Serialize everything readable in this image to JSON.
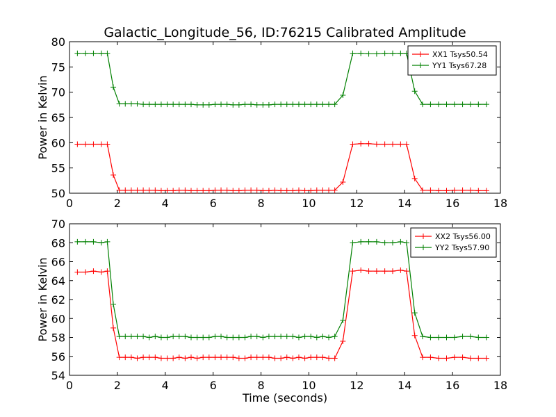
{
  "title": "Galactic_Longitude_56, ID:76215 Calibrated Amplitude",
  "colors": {
    "red": "#ff0000",
    "green": "#008000"
  },
  "chart_data": [
    {
      "type": "line",
      "xlabel": "",
      "ylabel": "Power in Kelvin",
      "xlim": [
        0,
        18
      ],
      "ylim": [
        50,
        80
      ],
      "xticks": [
        0,
        2,
        4,
        6,
        8,
        10,
        12,
        14,
        16,
        18
      ],
      "yticks": [
        50,
        55,
        60,
        65,
        70,
        75,
        80
      ],
      "grid": false,
      "legend_position": "top-right",
      "x": [
        0.33,
        0.67,
        1.0,
        1.33,
        1.58,
        1.83,
        2.08,
        2.33,
        2.58,
        2.83,
        3.08,
        3.33,
        3.58,
        3.83,
        4.08,
        4.33,
        4.58,
        4.83,
        5.08,
        5.33,
        5.58,
        5.83,
        6.08,
        6.33,
        6.58,
        6.83,
        7.08,
        7.33,
        7.58,
        7.83,
        8.08,
        8.33,
        8.58,
        8.83,
        9.08,
        9.33,
        9.58,
        9.83,
        10.08,
        10.33,
        10.58,
        10.83,
        11.08,
        11.42,
        11.83,
        12.17,
        12.5,
        12.83,
        13.17,
        13.5,
        13.83,
        14.08,
        14.42,
        14.75,
        15.08,
        15.42,
        15.75,
        16.08,
        16.42,
        16.75,
        17.08,
        17.42
      ],
      "series": [
        {
          "name": "XX1 Tsys50.54",
          "color": "#ff0000",
          "values": [
            59.7,
            59.7,
            59.7,
            59.7,
            59.7,
            53.6,
            50.6,
            50.6,
            50.6,
            50.6,
            50.6,
            50.6,
            50.6,
            50.5,
            50.5,
            50.5,
            50.6,
            50.6,
            50.5,
            50.5,
            50.5,
            50.5,
            50.6,
            50.6,
            50.6,
            50.5,
            50.5,
            50.6,
            50.6,
            50.6,
            50.5,
            50.5,
            50.6,
            50.5,
            50.5,
            50.5,
            50.6,
            50.5,
            50.5,
            50.6,
            50.6,
            50.6,
            50.6,
            52.2,
            59.7,
            59.8,
            59.8,
            59.7,
            59.7,
            59.7,
            59.7,
            59.7,
            52.9,
            50.6,
            50.6,
            50.5,
            50.5,
            50.6,
            50.6,
            50.6,
            50.5,
            50.5
          ]
        },
        {
          "name": "YY1 Tsys67.28",
          "color": "#008000",
          "values": [
            77.7,
            77.7,
            77.7,
            77.7,
            77.7,
            71.0,
            67.7,
            67.7,
            67.7,
            67.7,
            67.6,
            67.6,
            67.6,
            67.6,
            67.6,
            67.6,
            67.6,
            67.6,
            67.6,
            67.5,
            67.5,
            67.5,
            67.6,
            67.6,
            67.6,
            67.5,
            67.5,
            67.6,
            67.6,
            67.5,
            67.5,
            67.5,
            67.6,
            67.6,
            67.6,
            67.6,
            67.6,
            67.6,
            67.6,
            67.6,
            67.6,
            67.6,
            67.6,
            69.4,
            77.7,
            77.7,
            77.6,
            77.6,
            77.7,
            77.7,
            77.7,
            77.7,
            70.2,
            67.6,
            67.6,
            67.6,
            67.6,
            67.6,
            67.6,
            67.6,
            67.6,
            67.6
          ]
        }
      ]
    },
    {
      "type": "line",
      "xlabel": "Time (seconds)",
      "ylabel": "Power in Kelvin",
      "xlim": [
        0,
        18
      ],
      "ylim": [
        54,
        70
      ],
      "xticks": [
        0,
        2,
        4,
        6,
        8,
        10,
        12,
        14,
        16,
        18
      ],
      "yticks": [
        54,
        56,
        58,
        60,
        62,
        64,
        66,
        68,
        70
      ],
      "grid": false,
      "legend_position": "top-right",
      "x": [
        0.33,
        0.67,
        1.0,
        1.33,
        1.58,
        1.83,
        2.08,
        2.33,
        2.58,
        2.83,
        3.08,
        3.33,
        3.58,
        3.83,
        4.08,
        4.33,
        4.58,
        4.83,
        5.08,
        5.33,
        5.58,
        5.83,
        6.08,
        6.33,
        6.58,
        6.83,
        7.08,
        7.33,
        7.58,
        7.83,
        8.08,
        8.33,
        8.58,
        8.83,
        9.08,
        9.33,
        9.58,
        9.83,
        10.08,
        10.33,
        10.58,
        10.83,
        11.08,
        11.42,
        11.83,
        12.17,
        12.5,
        12.83,
        13.17,
        13.5,
        13.83,
        14.08,
        14.42,
        14.75,
        15.08,
        15.42,
        15.75,
        16.08,
        16.42,
        16.75,
        17.08,
        17.42
      ],
      "series": [
        {
          "name": "XX2 Tsys56.00",
          "color": "#ff0000",
          "values": [
            64.9,
            64.9,
            65.0,
            64.9,
            65.0,
            59.0,
            55.9,
            55.9,
            55.9,
            55.8,
            55.9,
            55.9,
            55.9,
            55.8,
            55.8,
            55.8,
            55.9,
            55.8,
            55.9,
            55.8,
            55.9,
            55.9,
            55.9,
            55.9,
            55.9,
            55.9,
            55.8,
            55.8,
            55.9,
            55.9,
            55.9,
            55.9,
            55.8,
            55.8,
            55.9,
            55.8,
            55.9,
            55.8,
            55.9,
            55.9,
            55.9,
            55.8,
            55.8,
            57.6,
            65.0,
            65.1,
            65.0,
            65.0,
            65.0,
            65.0,
            65.1,
            65.0,
            58.2,
            55.9,
            55.9,
            55.8,
            55.8,
            55.9,
            55.9,
            55.8,
            55.8,
            55.8
          ]
        },
        {
          "name": "YY2 Tsys57.90",
          "color": "#008000",
          "values": [
            68.1,
            68.1,
            68.1,
            68.0,
            68.1,
            61.5,
            58.1,
            58.1,
            58.1,
            58.1,
            58.1,
            58.0,
            58.1,
            58.0,
            58.0,
            58.1,
            58.1,
            58.1,
            58.0,
            58.0,
            58.0,
            58.0,
            58.1,
            58.1,
            58.0,
            58.0,
            58.0,
            58.0,
            58.1,
            58.1,
            58.0,
            58.1,
            58.1,
            58.1,
            58.1,
            58.1,
            58.0,
            58.1,
            58.1,
            58.0,
            58.1,
            58.0,
            58.1,
            59.8,
            68.0,
            68.1,
            68.1,
            68.1,
            68.0,
            68.0,
            68.1,
            68.0,
            60.6,
            58.1,
            58.0,
            58.0,
            58.0,
            58.0,
            58.1,
            58.1,
            58.0,
            58.0
          ]
        }
      ]
    }
  ]
}
